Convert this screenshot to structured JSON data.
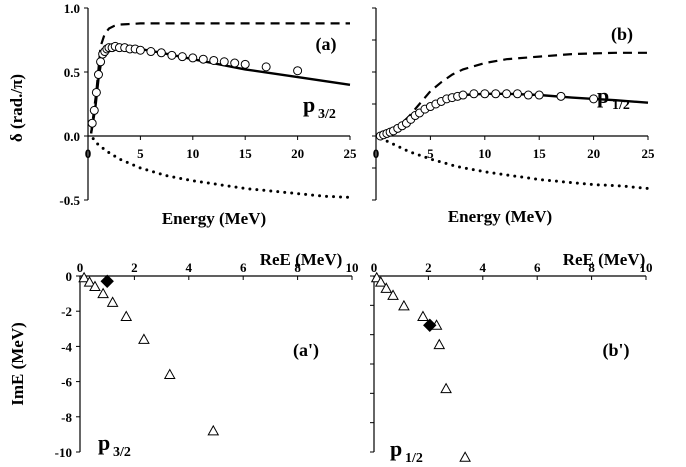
{
  "chart_data": [
    {
      "id": "a",
      "type": "line",
      "panel_label": "(a)",
      "state_label": {
        "main": "p",
        "sub": "3/2"
      },
      "xlabel": "Energy (MeV)",
      "ylabel": "δ (rad./π)",
      "xlim": [
        0,
        25
      ],
      "ylim": [
        -0.5,
        1.0
      ],
      "xticks": [
        "0",
        "5",
        "10",
        "15",
        "20",
        "25"
      ],
      "yticks": [
        "1.0",
        "0.5",
        "0.0",
        "-0.5"
      ],
      "series": [
        {
          "style": "dashed",
          "x": [
            0.3,
            0.8,
            1.2,
            1.6,
            2.0,
            2.5,
            3.0,
            4.0,
            5.0,
            7.0,
            10.0,
            15.0,
            20.0,
            25.0
          ],
          "y": [
            0.02,
            0.35,
            0.7,
            0.8,
            0.84,
            0.86,
            0.87,
            0.875,
            0.88,
            0.88,
            0.88,
            0.88,
            0.88,
            0.88
          ]
        },
        {
          "style": "solid",
          "x": [
            0.3,
            0.7,
            1.0,
            1.3,
            1.6,
            2.0,
            2.5,
            3.0,
            4.0,
            5.0,
            7.0,
            10.0,
            15.0,
            20.0,
            25.0
          ],
          "y": [
            0.02,
            0.22,
            0.45,
            0.6,
            0.66,
            0.69,
            0.7,
            0.7,
            0.69,
            0.68,
            0.65,
            0.6,
            0.52,
            0.46,
            0.4
          ]
        },
        {
          "style": "dotted",
          "x": [
            0.5,
            1.0,
            2.0,
            3.0,
            5.0,
            7.5,
            10.0,
            12.5,
            15.0,
            17.5,
            20.0,
            22.5,
            25.0
          ],
          "y": [
            -0.02,
            -0.07,
            -0.13,
            -0.18,
            -0.25,
            -0.31,
            -0.35,
            -0.38,
            -0.41,
            -0.43,
            -0.45,
            -0.47,
            -0.48
          ]
        },
        {
          "style": "circles",
          "x": [
            0.4,
            0.6,
            0.8,
            1.0,
            1.2,
            1.4,
            1.6,
            1.8,
            2.0,
            2.3,
            2.6,
            3.0,
            3.5,
            4.0,
            4.5,
            5.0,
            6.0,
            7.0,
            8.0,
            9.0,
            10.0,
            11.0,
            12.0,
            13.0,
            14.0,
            15.0,
            17.0,
            20.0
          ],
          "y": [
            0.1,
            0.2,
            0.34,
            0.48,
            0.58,
            0.64,
            0.66,
            0.68,
            0.69,
            0.69,
            0.7,
            0.69,
            0.69,
            0.68,
            0.68,
            0.67,
            0.66,
            0.65,
            0.63,
            0.62,
            0.61,
            0.6,
            0.59,
            0.58,
            0.57,
            0.56,
            0.54,
            0.51
          ]
        }
      ]
    },
    {
      "id": "b",
      "type": "line",
      "panel_label": "(b)",
      "state_label": {
        "main": "p",
        "sub": "1/2"
      },
      "xlabel": "Energy (MeV)",
      "xlim": [
        0,
        25
      ],
      "ylim": [
        -0.5,
        1.0
      ],
      "xticks": [
        "0",
        "5",
        "10",
        "15",
        "20",
        "25"
      ],
      "series": [
        {
          "style": "dashed",
          "x": [
            0.3,
            1.0,
            2.0,
            3.0,
            4.0,
            5.0,
            6.0,
            7.0,
            8.0,
            10.0,
            12.0,
            15.0,
            18.0,
            20.0,
            22.0,
            25.0
          ],
          "y": [
            0.0,
            0.02,
            0.07,
            0.15,
            0.25,
            0.35,
            0.42,
            0.48,
            0.52,
            0.57,
            0.6,
            0.62,
            0.64,
            0.645,
            0.65,
            0.65
          ]
        },
        {
          "style": "solid",
          "x": [
            0.3,
            1.0,
            2.0,
            3.0,
            4.0,
            5.0,
            6.0,
            7.0,
            8.0,
            10.0,
            12.0,
            15.0,
            18.0,
            20.0,
            22.0,
            25.0
          ],
          "y": [
            0.0,
            0.01,
            0.04,
            0.1,
            0.18,
            0.24,
            0.28,
            0.31,
            0.32,
            0.33,
            0.33,
            0.32,
            0.3,
            0.29,
            0.28,
            0.26
          ]
        },
        {
          "style": "dotted",
          "x": [
            0.5,
            1.0,
            2.0,
            3.0,
            5.0,
            7.5,
            10.0,
            12.5,
            15.0,
            17.5,
            20.0,
            22.5,
            25.0
          ],
          "y": [
            -0.01,
            -0.04,
            -0.08,
            -0.12,
            -0.18,
            -0.24,
            -0.28,
            -0.31,
            -0.34,
            -0.36,
            -0.38,
            -0.39,
            -0.41
          ]
        },
        {
          "style": "circles",
          "x": [
            0.4,
            0.7,
            1.0,
            1.3,
            1.6,
            2.0,
            2.4,
            2.8,
            3.2,
            3.6,
            4.0,
            4.5,
            5.0,
            5.5,
            6.0,
            6.5,
            7.0,
            7.5,
            8.0,
            9.0,
            10.0,
            11.0,
            12.0,
            13.0,
            14.0,
            15.0,
            17.0,
            20.0
          ],
          "y": [
            0.0,
            0.01,
            0.02,
            0.03,
            0.04,
            0.06,
            0.08,
            0.1,
            0.13,
            0.16,
            0.18,
            0.21,
            0.23,
            0.25,
            0.27,
            0.29,
            0.3,
            0.31,
            0.32,
            0.33,
            0.33,
            0.33,
            0.33,
            0.33,
            0.32,
            0.32,
            0.31,
            0.29
          ]
        }
      ]
    },
    {
      "id": "a-prime",
      "type": "scatter",
      "panel_label": "(a')",
      "state_label": {
        "main": "p",
        "sub": "3/2"
      },
      "xlabel": "ReE (MeV)",
      "ylabel": "ImE (MeV)",
      "xlim": [
        0,
        10
      ],
      "ylim": [
        -10,
        0
      ],
      "xticks": [
        "0",
        "2",
        "4",
        "6",
        "8",
        "10"
      ],
      "yticks": [
        "0",
        "-2",
        "-4",
        "-6",
        "-8",
        "-10"
      ],
      "series": [
        {
          "style": "triangles",
          "x": [
            0.15,
            0.35,
            0.55,
            0.85,
            1.2,
            1.7,
            2.35,
            3.3,
            4.9
          ],
          "y": [
            -0.1,
            -0.35,
            -0.6,
            -1.0,
            -1.5,
            -2.3,
            -3.6,
            -5.6,
            -8.8
          ]
        },
        {
          "style": "filled-diamond",
          "x": [
            1.0
          ],
          "y": [
            -0.3
          ]
        }
      ]
    },
    {
      "id": "b-prime",
      "type": "scatter",
      "panel_label": "(b')",
      "state_label": {
        "main": "p",
        "sub": "1/2"
      },
      "xlabel": "ReE (MeV)",
      "xlim": [
        0,
        10
      ],
      "ylim": [
        -10,
        0
      ],
      "xticks": [
        "0",
        "2",
        "4",
        "6",
        "8",
        "10"
      ],
      "series": [
        {
          "style": "triangles",
          "x": [
            0.1,
            0.25,
            0.45,
            0.7,
            1.1,
            1.8,
            2.3,
            2.4,
            2.65,
            3.35
          ],
          "y": [
            -0.1,
            -0.35,
            -0.7,
            -1.1,
            -1.7,
            -2.3,
            -2.8,
            -3.9,
            -6.4,
            -10.3
          ]
        },
        {
          "style": "filled-diamond",
          "x": [
            2.05
          ],
          "y": [
            -2.8
          ]
        }
      ]
    }
  ]
}
